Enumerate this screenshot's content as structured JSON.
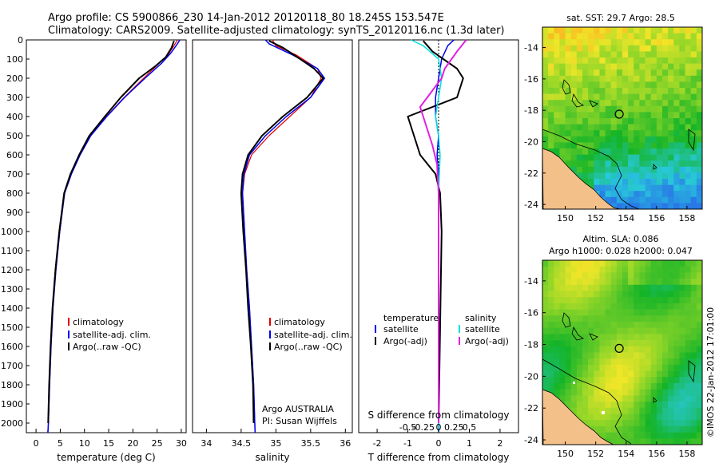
{
  "header": {
    "title_line1": "Argo profile: CS 5900866_230 14-Jan-2012 20120118_80 18.245S 153.547E",
    "title_line2": "Climatology: CARS2009. Satellite-adjusted climatology: synTS_20120116.nc (1.3d later)"
  },
  "colors": {
    "climatology": "#e00000",
    "satellite": "#0000ee",
    "argo": "#000000",
    "salinity_sat": "#00e0e0",
    "salinity_argo": "#e020e0",
    "land": "#f4c08a"
  },
  "chart_data": [
    {
      "type": "line",
      "name": "temperature-panel",
      "xlabel": "temperature (deg C)",
      "ylabel": "",
      "xlim": [
        -2,
        31
      ],
      "ylim": [
        0,
        2050
      ],
      "y_inverted": true,
      "x_ticks": [
        0,
        5,
        10,
        15,
        20,
        25,
        30
      ],
      "x_tick_labels": [
        "0",
        "5",
        "10",
        "15",
        "20",
        "25",
        "30"
      ],
      "y_ticks": [
        0,
        100,
        200,
        300,
        400,
        500,
        600,
        700,
        800,
        900,
        1000,
        1100,
        1200,
        1300,
        1400,
        1500,
        1600,
        1700,
        1800,
        1900,
        2000
      ],
      "y_tick_labels": [
        "0",
        "100",
        "200",
        "300",
        "400",
        "500",
        "600",
        "700",
        "800",
        "900",
        "1000",
        "1100",
        "1200",
        "1300",
        "1400",
        "1500",
        "1600",
        "1700",
        "1800",
        "1900",
        "2000"
      ],
      "legend": [
        "climatology",
        "satellite-adj. clim.",
        "Argo(..raw -QC)"
      ],
      "series": [
        {
          "name": "climatology",
          "color": "#e00000",
          "width": 1.2,
          "x": [
            29.2,
            28.5,
            27.2,
            25.5,
            22.2,
            18.2,
            14.5,
            11.2,
            9.0,
            7.2,
            5.9,
            4.9,
            4.1,
            3.5,
            3.1,
            2.8,
            2.55,
            2.4
          ],
          "y": [
            0,
            30,
            80,
            120,
            200,
            300,
            400,
            500,
            600,
            700,
            800,
            1000,
            1200,
            1400,
            1600,
            1800,
            2000,
            2050
          ]
        },
        {
          "name": "satellite",
          "color": "#0000ee",
          "width": 1.5,
          "x": [
            29.7,
            29.2,
            27.8,
            26.0,
            22.5,
            18.3,
            14.6,
            11.3,
            9.1,
            7.3,
            5.9,
            4.9,
            4.1,
            3.5,
            3.1,
            2.8,
            2.55,
            2.45
          ],
          "y": [
            0,
            20,
            70,
            120,
            200,
            300,
            400,
            500,
            600,
            700,
            800,
            1000,
            1200,
            1400,
            1600,
            1800,
            2000,
            2050
          ]
        },
        {
          "name": "argo",
          "color": "#000000",
          "width": 2,
          "x": [
            28.5,
            28.0,
            26.8,
            24.5,
            21.3,
            17.5,
            14.2,
            11.0,
            8.9,
            7.1,
            5.8,
            4.8,
            4.0,
            3.4,
            3.0,
            2.7,
            2.5
          ],
          "y": [
            5,
            40,
            90,
            140,
            200,
            300,
            400,
            500,
            600,
            700,
            800,
            1000,
            1200,
            1400,
            1600,
            1800,
            2000
          ]
        }
      ]
    },
    {
      "type": "line",
      "name": "salinity-panel",
      "xlabel": "salinity",
      "xlim": [
        33.8,
        36.1
      ],
      "ylim": [
        0,
        2050
      ],
      "y_inverted": true,
      "x_ticks": [
        34,
        34.5,
        35,
        35.5,
        36
      ],
      "x_tick_labels": [
        "34",
        "34.5",
        "35",
        "35.5",
        "36"
      ],
      "legend": [
        "climatology",
        "satellite-adj. clim.",
        "Argo(..raw -QC)"
      ],
      "annotations": [
        "Argo AUSTRALIA",
        "PI: Susan Wijffels"
      ],
      "series": [
        {
          "name": "climatology",
          "color": "#e00000",
          "width": 1.2,
          "x": [
            34.95,
            35.0,
            35.3,
            35.6,
            35.65,
            35.5,
            35.2,
            34.9,
            34.65,
            34.55,
            34.52,
            34.55,
            34.58,
            34.62,
            34.65,
            34.68,
            34.7
          ],
          "y": [
            0,
            30,
            80,
            150,
            200,
            300,
            400,
            500,
            600,
            700,
            800,
            1000,
            1200,
            1400,
            1600,
            1800,
            2050
          ]
        },
        {
          "name": "satellite",
          "color": "#0000ee",
          "width": 1.5,
          "x": [
            34.85,
            34.9,
            35.25,
            35.6,
            35.7,
            35.5,
            35.15,
            34.85,
            34.62,
            34.54,
            34.52,
            34.55,
            34.58,
            34.62,
            34.65,
            34.68,
            34.7
          ],
          "y": [
            0,
            20,
            80,
            150,
            200,
            300,
            400,
            500,
            600,
            700,
            800,
            1000,
            1200,
            1400,
            1600,
            1800,
            2050
          ]
        },
        {
          "name": "argo",
          "color": "#000000",
          "width": 2,
          "x": [
            34.9,
            35.1,
            35.35,
            35.55,
            35.68,
            35.45,
            35.1,
            34.8,
            34.6,
            34.52,
            34.5,
            34.53,
            34.57,
            34.6,
            34.64,
            34.67,
            34.68
          ],
          "y": [
            5,
            40,
            100,
            150,
            200,
            300,
            400,
            500,
            600,
            700,
            800,
            1000,
            1200,
            1400,
            1600,
            1800,
            2000
          ]
        }
      ]
    },
    {
      "type": "line",
      "name": "difference-panel",
      "xlabel": "T difference from climatology",
      "top_xlabel": "S difference from climatology",
      "xlim": [
        -2.6,
        2.6
      ],
      "ylim": [
        0,
        2050
      ],
      "y_inverted": true,
      "x_ticks": [
        -2,
        -1,
        0,
        1,
        2
      ],
      "x_tick_labels": [
        "-2",
        "-1",
        "0",
        "1",
        "2"
      ],
      "top_x_ticks": [
        -1,
        -0.5,
        0,
        0.5,
        1
      ],
      "top_x_tick_labels": [
        "-0.5",
        "-0.25",
        "0",
        "0.25",
        "0.5"
      ],
      "legend_temperature": [
        "temperature",
        "satellite",
        "Argo(-adj)"
      ],
      "legend_salinity": [
        "salinity",
        "satellite",
        "Argo(-adj)"
      ],
      "series": [
        {
          "name": "T satellite",
          "color": "#0000ee",
          "width": 1.5,
          "x": [
            0.5,
            0.3,
            0.1,
            0.0,
            -0.1,
            -0.1,
            0.0,
            -0.05,
            0.0,
            0.0,
            0.0,
            0.0,
            0.0
          ],
          "y": [
            0,
            30,
            100,
            200,
            300,
            400,
            500,
            600,
            700,
            800,
            1000,
            1500,
            2050
          ]
        },
        {
          "name": "T argo",
          "color": "#000000",
          "width": 2,
          "x": [
            -0.5,
            -0.2,
            0.6,
            0.8,
            0.6,
            -1.0,
            -0.8,
            -0.6,
            -0.1,
            0.05,
            0.1,
            0.05,
            0.0
          ],
          "y": [
            5,
            60,
            150,
            200,
            300,
            400,
            500,
            600,
            700,
            800,
            1000,
            1500,
            2000
          ]
        },
        {
          "name": "S satellite",
          "color": "#00e0e0",
          "width": 1.5,
          "x": [
            -0.9,
            -0.5,
            0.0,
            0.1,
            0.0,
            -0.1,
            0.0,
            0.05,
            0.0,
            0.0,
            0.0
          ],
          "y": [
            0,
            30,
            100,
            200,
            300,
            400,
            500,
            600,
            800,
            1200,
            2050
          ]
        },
        {
          "name": "S argo",
          "color": "#e020e0",
          "width": 2,
          "x": [
            0.9,
            0.6,
            0.2,
            0.1,
            -0.6,
            -0.4,
            -0.2,
            -0.05,
            0.0,
            0.0,
            0.0
          ],
          "y": [
            0,
            60,
            150,
            200,
            350,
            450,
            550,
            650,
            800,
            1200,
            2000
          ]
        }
      ]
    },
    {
      "type": "heatmap",
      "name": "sst-map",
      "title": "sat. SST: 29.7 Argo: 28.5",
      "x_ticks": [
        150,
        152,
        154,
        156,
        158
      ],
      "x_tick_labels": [
        "150",
        "152",
        "154",
        "156",
        "158"
      ],
      "y_ticks": [
        -14,
        -16,
        -18,
        -20,
        -22,
        -24
      ],
      "y_tick_labels": [
        "-14",
        "-16",
        "-18",
        "-20",
        "-22",
        "-24"
      ],
      "xlim": [
        148.5,
        159
      ],
      "ylim": [
        -24.3,
        -12.7
      ],
      "marker": {
        "lon": 153.547,
        "lat": -18.245
      }
    },
    {
      "type": "heatmap",
      "name": "sla-map",
      "title_line1": "Altim. SLA: 0.086",
      "title_line2": "Argo h1000: 0.028 h2000: 0.047",
      "x_ticks": [
        150,
        152,
        154,
        156,
        158
      ],
      "x_tick_labels": [
        "150",
        "152",
        "154",
        "156",
        "158"
      ],
      "y_ticks": [
        -14,
        -16,
        -18,
        -20,
        -22,
        -24
      ],
      "y_tick_labels": [
        "-14",
        "-16",
        "-18",
        "-20",
        "-22",
        "-24"
      ],
      "xlim": [
        148.5,
        159
      ],
      "ylim": [
        -24.3,
        -12.7
      ],
      "marker": {
        "lon": 153.547,
        "lat": -18.245
      }
    }
  ],
  "credit": "©IMOS 22-Jan-2012 17:01:00"
}
